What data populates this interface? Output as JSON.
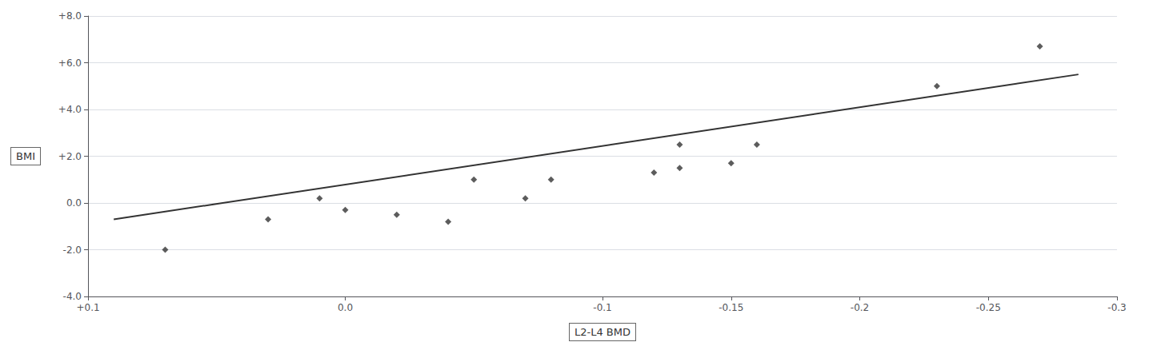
{
  "chart_data": {
    "type": "scatter",
    "xlabel": "L2-L4 BMD",
    "ylabel": "BMI",
    "background_color": "#ffffff",
    "series": [
      {
        "type": "scatter",
        "color": "#333333",
        "marker": "diamond",
        "x": [
          0.07,
          0.03,
          0.01,
          0.0,
          -0.02,
          -0.04,
          -0.05,
          -0.07,
          -0.08,
          -0.12,
          -0.13,
          -0.13,
          -0.15,
          -0.16,
          -0.23,
          -0.27
        ],
        "values": [
          -2.0,
          -0.7,
          0.2,
          -0.3,
          -0.5,
          -0.8,
          1.0,
          0.2,
          1.0,
          1.3,
          1.5,
          2.5,
          1.7,
          2.5,
          5.0,
          6.7
        ]
      },
      {
        "type": "line",
        "color": "#333333",
        "line_style": "solid",
        "x": [
          0.09,
          -0.285
        ],
        "values": [
          -0.7,
          5.5
        ]
      }
    ],
    "xlim": [
      0.1,
      -0.3
    ],
    "xticks": [
      {
        "value": 0.1,
        "label": "+0.1"
      },
      {
        "value": 0.0,
        "label": "0.0"
      },
      -0.1,
      -0.15,
      -0.2,
      -0.25,
      -0.3
    ],
    "ylim": [
      -4.0,
      8.0
    ],
    "yticks": [
      {
        "value": -4.0,
        "label": "-4.0"
      },
      {
        "value": -2.0,
        "label": "-2.0"
      },
      {
        "value": 0.0,
        "label": "0.0"
      },
      {
        "value": 2.0,
        "label": "+2.0"
      },
      {
        "value": 4.0,
        "label": "+4.0"
      },
      {
        "value": 6.0,
        "label": "+6.0"
      },
      {
        "value": 8.0,
        "label": "+8.0"
      }
    ],
    "grid": "y"
  }
}
